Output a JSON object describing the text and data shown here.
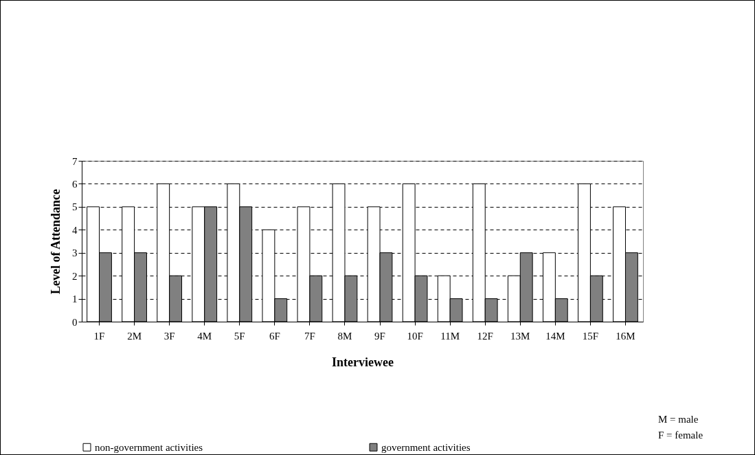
{
  "chart_data": {
    "type": "bar",
    "xlabel": "Interviewee",
    "ylabel": "Level of Attendance",
    "categories": [
      "1F",
      "2M",
      "3F",
      "4M",
      "5F",
      "6F",
      "7F",
      "8M",
      "9F",
      "10F",
      "11M",
      "12F",
      "13M",
      "14M",
      "15F",
      "16M"
    ],
    "series": [
      {
        "name": "non-government activities",
        "color": "#ffffff",
        "values": [
          5,
          5,
          6,
          5,
          6,
          4,
          5,
          6,
          5,
          6,
          2,
          6,
          2,
          3,
          6,
          5
        ]
      },
      {
        "name": "government activities",
        "color": "#808080",
        "values": [
          3,
          3,
          2,
          5,
          5,
          1,
          2,
          2,
          3,
          2,
          1,
          1,
          3,
          1,
          2,
          3
        ]
      }
    ],
    "ylim": [
      0,
      7
    ],
    "yticks": [
      0,
      1,
      2,
      3,
      4,
      5,
      6,
      7
    ],
    "grid": "y",
    "legend": "bottom",
    "annotations": [
      "M = male",
      "F = female"
    ]
  }
}
